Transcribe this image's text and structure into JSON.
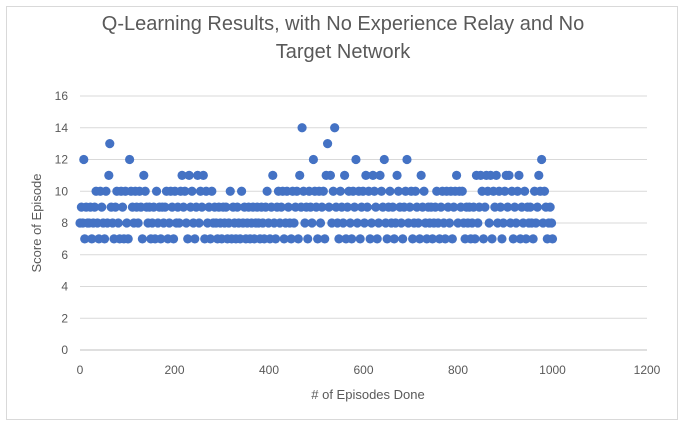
{
  "chart_data": {
    "type": "scatter",
    "title_line1": "Q-Learning Results, with No Experience Relay and No",
    "title_line2": "Target Network",
    "xlabel": "# of Episodes Done",
    "ylabel": "Score of Episode",
    "xlim": [
      0,
      1200
    ],
    "ylim": [
      0,
      16
    ],
    "x_ticks": [
      0,
      200,
      400,
      600,
      800,
      1000,
      1200
    ],
    "y_ticks": [
      0,
      2,
      4,
      6,
      8,
      10,
      12,
      14,
      16
    ],
    "grid": "horizontal",
    "legend": "none",
    "marker_color": "#4472c4",
    "series": [
      {
        "points": [
          [
            0,
            8
          ],
          [
            3,
            9
          ],
          [
            6,
            8
          ],
          [
            8,
            12
          ],
          [
            10,
            7
          ],
          [
            13,
            9
          ],
          [
            16,
            8
          ],
          [
            19,
            8
          ],
          [
            22,
            9
          ],
          [
            25,
            7
          ],
          [
            28,
            8
          ],
          [
            31,
            9
          ],
          [
            34,
            10
          ],
          [
            37,
            8
          ],
          [
            40,
            7
          ],
          [
            43,
            10
          ],
          [
            46,
            9
          ],
          [
            49,
            8
          ],
          [
            52,
            7
          ],
          [
            55,
            10
          ],
          [
            58,
            8
          ],
          [
            61,
            11
          ],
          [
            63,
            13
          ],
          [
            66,
            9
          ],
          [
            69,
            8
          ],
          [
            72,
            7
          ],
          [
            75,
            9
          ],
          [
            78,
            10
          ],
          [
            81,
            8
          ],
          [
            84,
            7
          ],
          [
            87,
            10
          ],
          [
            90,
            9
          ],
          [
            93,
            7
          ],
          [
            96,
            10
          ],
          [
            99,
            8
          ],
          [
            102,
            7
          ],
          [
            105,
            12
          ],
          [
            108,
            10
          ],
          [
            111,
            9
          ],
          [
            114,
            8
          ],
          [
            117,
            10
          ],
          [
            120,
            9
          ],
          [
            123,
            8
          ],
          [
            126,
            10
          ],
          [
            129,
            9
          ],
          [
            132,
            7
          ],
          [
            135,
            11
          ],
          [
            138,
            10
          ],
          [
            141,
            9
          ],
          [
            144,
            8
          ],
          [
            147,
            9
          ],
          [
            150,
            7
          ],
          [
            153,
            8
          ],
          [
            156,
            9
          ],
          [
            159,
            7
          ],
          [
            162,
            10
          ],
          [
            165,
            8
          ],
          [
            168,
            9
          ],
          [
            171,
            7
          ],
          [
            174,
            9
          ],
          [
            177,
            8
          ],
          [
            180,
            9
          ],
          [
            183,
            10
          ],
          [
            186,
            7
          ],
          [
            189,
            8
          ],
          [
            192,
            10
          ],
          [
            195,
            9
          ],
          [
            198,
            7
          ],
          [
            201,
            10
          ],
          [
            204,
            8
          ],
          [
            207,
            9
          ],
          [
            210,
            8
          ],
          [
            213,
            10
          ],
          [
            216,
            11
          ],
          [
            219,
            9
          ],
          [
            222,
            10
          ],
          [
            225,
            8
          ],
          [
            228,
            7
          ],
          [
            231,
            11
          ],
          [
            234,
            9
          ],
          [
            237,
            10
          ],
          [
            240,
            8
          ],
          [
            243,
            7
          ],
          [
            246,
            9
          ],
          [
            249,
            11
          ],
          [
            252,
            8
          ],
          [
            255,
            10
          ],
          [
            258,
            9
          ],
          [
            261,
            11
          ],
          [
            264,
            7
          ],
          [
            267,
            10
          ],
          [
            270,
            8
          ],
          [
            273,
            9
          ],
          [
            276,
            7
          ],
          [
            279,
            10
          ],
          [
            282,
            8
          ],
          [
            285,
            9
          ],
          [
            288,
            8
          ],
          [
            291,
            7
          ],
          [
            294,
            9
          ],
          [
            297,
            8
          ],
          [
            300,
            7
          ],
          [
            303,
            9
          ],
          [
            306,
            8
          ],
          [
            309,
            9
          ],
          [
            312,
            7
          ],
          [
            315,
            8
          ],
          [
            318,
            10
          ],
          [
            321,
            7
          ],
          [
            324,
            9
          ],
          [
            327,
            8
          ],
          [
            330,
            7
          ],
          [
            333,
            9
          ],
          [
            336,
            8
          ],
          [
            339,
            7
          ],
          [
            342,
            10
          ],
          [
            345,
            8
          ],
          [
            348,
            9
          ],
          [
            351,
            7
          ],
          [
            354,
            8
          ],
          [
            357,
            9
          ],
          [
            360,
            7
          ],
          [
            363,
            8
          ],
          [
            366,
            9
          ],
          [
            369,
            7
          ],
          [
            372,
            8
          ],
          [
            375,
            9
          ],
          [
            378,
            8
          ],
          [
            381,
            7
          ],
          [
            384,
            9
          ],
          [
            387,
            8
          ],
          [
            390,
            7
          ],
          [
            393,
            9
          ],
          [
            396,
            10
          ],
          [
            399,
            8
          ],
          [
            402,
            7
          ],
          [
            405,
            9
          ],
          [
            408,
            11
          ],
          [
            411,
            8
          ],
          [
            414,
            7
          ],
          [
            417,
            9
          ],
          [
            420,
            10
          ],
          [
            423,
            8
          ],
          [
            426,
            9
          ],
          [
            429,
            10
          ],
          [
            432,
            7
          ],
          [
            435,
            8
          ],
          [
            438,
            10
          ],
          [
            441,
            9
          ],
          [
            444,
            8
          ],
          [
            447,
            7
          ],
          [
            450,
            10
          ],
          [
            453,
            8
          ],
          [
            456,
            9
          ],
          [
            459,
            10
          ],
          [
            462,
            7
          ],
          [
            465,
            11
          ],
          [
            468,
            9
          ],
          [
            470,
            14
          ],
          [
            473,
            10
          ],
          [
            476,
            8
          ],
          [
            479,
            9
          ],
          [
            482,
            7
          ],
          [
            485,
            10
          ],
          [
            488,
            9
          ],
          [
            491,
            8
          ],
          [
            494,
            12
          ],
          [
            497,
            10
          ],
          [
            500,
            9
          ],
          [
            503,
            7
          ],
          [
            506,
            10
          ],
          [
            509,
            8
          ],
          [
            512,
            9
          ],
          [
            515,
            10
          ],
          [
            518,
            7
          ],
          [
            521,
            11
          ],
          [
            524,
            13
          ],
          [
            527,
            9
          ],
          [
            530,
            11
          ],
          [
            533,
            8
          ],
          [
            536,
            10
          ],
          [
            539,
            14
          ],
          [
            542,
            9
          ],
          [
            545,
            8
          ],
          [
            548,
            7
          ],
          [
            551,
            10
          ],
          [
            554,
            9
          ],
          [
            557,
            8
          ],
          [
            560,
            11
          ],
          [
            563,
            7
          ],
          [
            566,
            9
          ],
          [
            569,
            10
          ],
          [
            572,
            8
          ],
          [
            575,
            7
          ],
          [
            578,
            10
          ],
          [
            581,
            9
          ],
          [
            584,
            12
          ],
          [
            587,
            8
          ],
          [
            590,
            10
          ],
          [
            593,
            7
          ],
          [
            596,
            9
          ],
          [
            599,
            10
          ],
          [
            602,
            8
          ],
          [
            605,
            11
          ],
          [
            608,
            9
          ],
          [
            611,
            10
          ],
          [
            614,
            7
          ],
          [
            617,
            8
          ],
          [
            620,
            11
          ],
          [
            623,
            10
          ],
          [
            626,
            9
          ],
          [
            629,
            7
          ],
          [
            632,
            8
          ],
          [
            635,
            11
          ],
          [
            638,
            10
          ],
          [
            641,
            9
          ],
          [
            644,
            12
          ],
          [
            647,
            8
          ],
          [
            650,
            7
          ],
          [
            653,
            9
          ],
          [
            656,
            10
          ],
          [
            659,
            8
          ],
          [
            662,
            9
          ],
          [
            665,
            7
          ],
          [
            668,
            8
          ],
          [
            671,
            11
          ],
          [
            674,
            10
          ],
          [
            677,
            9
          ],
          [
            680,
            8
          ],
          [
            683,
            7
          ],
          [
            686,
            9
          ],
          [
            689,
            10
          ],
          [
            692,
            12
          ],
          [
            695,
            8
          ],
          [
            698,
            9
          ],
          [
            701,
            10
          ],
          [
            704,
            7
          ],
          [
            707,
            8
          ],
          [
            710,
            10
          ],
          [
            713,
            9
          ],
          [
            716,
            8
          ],
          [
            719,
            7
          ],
          [
            722,
            11
          ],
          [
            725,
            9
          ],
          [
            728,
            10
          ],
          [
            731,
            8
          ],
          [
            734,
            7
          ],
          [
            737,
            9
          ],
          [
            740,
            8
          ],
          [
            743,
            9
          ],
          [
            746,
            7
          ],
          [
            749,
            8
          ],
          [
            752,
            9
          ],
          [
            755,
            10
          ],
          [
            758,
            8
          ],
          [
            761,
            7
          ],
          [
            764,
            9
          ],
          [
            767,
            10
          ],
          [
            770,
            8
          ],
          [
            773,
            7
          ],
          [
            776,
            10
          ],
          [
            779,
            9
          ],
          [
            782,
            8
          ],
          [
            785,
            10
          ],
          [
            788,
            7
          ],
          [
            791,
            9
          ],
          [
            794,
            10
          ],
          [
            797,
            11
          ],
          [
            800,
            8
          ],
          [
            803,
            10
          ],
          [
            806,
            9
          ],
          [
            809,
            10
          ],
          [
            812,
            8
          ],
          [
            815,
            7
          ],
          [
            818,
            9
          ],
          [
            821,
            8
          ],
          [
            824,
            9
          ],
          [
            827,
            7
          ],
          [
            830,
            8
          ],
          [
            833,
            9
          ],
          [
            836,
            7
          ],
          [
            839,
            11
          ],
          [
            842,
            8
          ],
          [
            845,
            9
          ],
          [
            848,
            11
          ],
          [
            851,
            10
          ],
          [
            854,
            7
          ],
          [
            857,
            9
          ],
          [
            860,
            11
          ],
          [
            863,
            10
          ],
          [
            866,
            8
          ],
          [
            869,
            11
          ],
          [
            872,
            7
          ],
          [
            875,
            10
          ],
          [
            878,
            9
          ],
          [
            881,
            11
          ],
          [
            884,
            8
          ],
          [
            887,
            10
          ],
          [
            890,
            9
          ],
          [
            893,
            7
          ],
          [
            896,
            8
          ],
          [
            899,
            10
          ],
          [
            902,
            11
          ],
          [
            905,
            9
          ],
          [
            908,
            11
          ],
          [
            911,
            8
          ],
          [
            914,
            10
          ],
          [
            917,
            7
          ],
          [
            920,
            9
          ],
          [
            923,
            8
          ],
          [
            926,
            10
          ],
          [
            929,
            11
          ],
          [
            932,
            7
          ],
          [
            935,
            9
          ],
          [
            938,
            8
          ],
          [
            941,
            10
          ],
          [
            944,
            7
          ],
          [
            947,
            9
          ],
          [
            950,
            8
          ],
          [
            953,
            9
          ],
          [
            956,
            8
          ],
          [
            959,
            7
          ],
          [
            962,
            10
          ],
          [
            965,
            8
          ],
          [
            968,
            9
          ],
          [
            971,
            11
          ],
          [
            974,
            10
          ],
          [
            977,
            12
          ],
          [
            980,
            8
          ],
          [
            983,
            10
          ],
          [
            986,
            9
          ],
          [
            989,
            7
          ],
          [
            992,
            8
          ],
          [
            995,
            9
          ],
          [
            998,
            8
          ],
          [
            1000,
            7
          ]
        ]
      }
    ]
  }
}
